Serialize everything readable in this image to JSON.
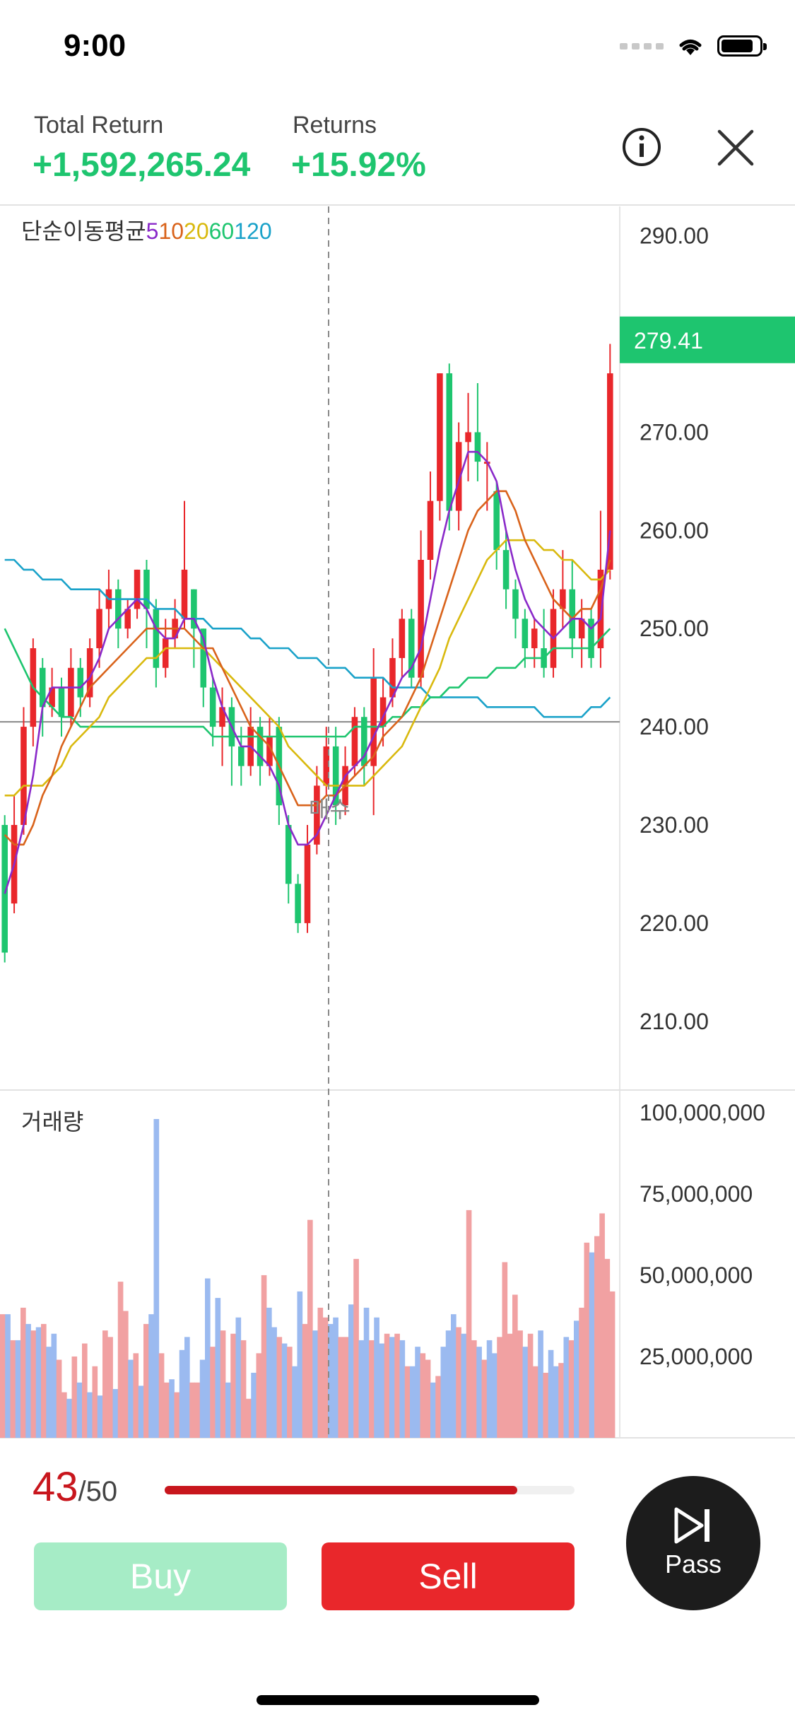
{
  "status_bar": {
    "time": "9:00"
  },
  "header": {
    "total_return_label": "Total Return",
    "total_return_value": "+1,592,265.24",
    "returns_label": "Returns",
    "returns_value": "+15.92%",
    "info_icon": "info-icon",
    "close_icon": "close-icon"
  },
  "colors": {
    "up": "#e9272b",
    "down": "#1ec56f",
    "ma5": "#8a2ac9",
    "ma10": "#d9631b",
    "ma20": "#d9b90e",
    "ma60": "#1ec56f",
    "ma120": "#1aa2c9"
  },
  "chart_data": [
    {
      "type": "candlestick",
      "title": "단순이동평균",
      "legend": [
        {
          "name": "5",
          "color": "#8a2ac9"
        },
        {
          "name": "10",
          "color": "#d9631b"
        },
        {
          "name": "20",
          "color": "#d9b90e"
        },
        {
          "name": "60",
          "color": "#1ec56f"
        },
        {
          "name": "120",
          "color": "#1aa2c9"
        }
      ],
      "y_ticks": [
        "290.00",
        "270.00",
        "260.00",
        "250.00",
        "240.00",
        "230.00",
        "220.00",
        "210.00"
      ],
      "ylim": [
        203,
        293
      ],
      "current_price": "279.41",
      "reference_line": 240.5,
      "marker_label": "매수",
      "candles": [
        [
          230,
          217,
          231,
          216
        ],
        [
          222,
          230,
          233,
          221
        ],
        [
          230,
          240,
          242,
          229
        ],
        [
          240,
          248,
          249,
          238
        ],
        [
          246,
          242,
          247,
          239
        ],
        [
          242,
          244,
          246,
          241
        ],
        [
          244,
          241,
          245,
          239
        ],
        [
          241,
          246,
          248,
          240
        ],
        [
          246,
          243,
          247,
          241
        ],
        [
          243,
          248,
          249,
          242
        ],
        [
          248,
          252,
          254,
          246
        ],
        [
          252,
          254,
          256,
          250
        ],
        [
          254,
          250,
          255,
          248
        ],
        [
          250,
          252,
          253,
          249
        ],
        [
          252,
          256,
          256,
          251
        ],
        [
          256,
          252,
          257,
          248
        ],
        [
          252,
          246,
          253,
          244
        ],
        [
          246,
          249,
          251,
          245
        ],
        [
          249,
          251,
          253,
          248
        ],
        [
          251,
          256,
          263,
          250
        ],
        [
          254,
          250,
          254,
          246
        ],
        [
          250,
          244,
          250,
          242
        ],
        [
          244,
          240,
          245,
          238
        ],
        [
          240,
          242,
          244,
          236
        ],
        [
          242,
          238,
          243,
          234
        ],
        [
          238,
          236,
          240,
          234
        ],
        [
          236,
          240,
          242,
          235
        ],
        [
          240,
          236,
          241,
          234
        ],
        [
          236,
          239,
          241,
          235
        ],
        [
          240,
          232,
          241,
          230
        ],
        [
          230,
          224,
          231,
          222
        ],
        [
          224,
          220,
          225,
          219
        ],
        [
          220,
          228,
          230,
          219
        ],
        [
          228,
          234,
          236,
          227
        ],
        [
          234,
          238,
          240,
          233
        ],
        [
          238,
          232,
          240,
          230
        ],
        [
          232,
          236,
          238,
          231
        ],
        [
          236,
          241,
          242,
          235
        ],
        [
          241,
          236,
          242,
          234
        ],
        [
          236,
          245,
          248,
          231
        ],
        [
          240,
          243,
          245,
          238
        ],
        [
          243,
          247,
          249,
          242
        ],
        [
          247,
          251,
          252,
          245
        ],
        [
          251,
          245,
          252,
          244
        ],
        [
          245,
          257,
          260,
          244
        ],
        [
          257,
          263,
          266,
          255
        ],
        [
          263,
          276,
          276,
          261
        ],
        [
          276,
          262,
          277,
          260
        ],
        [
          262,
          269,
          271,
          260
        ],
        [
          269,
          270,
          274,
          265
        ],
        [
          270,
          267,
          275,
          265
        ],
        [
          267,
          267,
          269,
          262
        ],
        [
          264,
          258,
          265,
          256
        ],
        [
          258,
          254,
          260,
          252
        ],
        [
          254,
          251,
          255,
          249
        ],
        [
          251,
          248,
          252,
          246
        ],
        [
          248,
          250,
          251,
          246
        ],
        [
          248,
          246,
          252,
          245
        ],
        [
          246,
          252,
          254,
          245
        ],
        [
          252,
          254,
          258,
          250
        ],
        [
          254,
          249,
          257,
          247
        ],
        [
          249,
          251,
          253,
          246
        ],
        [
          251,
          247,
          252,
          246
        ],
        [
          248,
          256,
          262,
          246
        ],
        [
          256,
          276,
          279,
          255
        ]
      ],
      "ma_series": {
        "ma5": [
          223,
          226,
          230,
          235,
          242,
          244,
          244,
          244,
          244,
          245,
          247,
          250,
          251,
          252,
          253,
          252,
          250,
          249,
          249,
          251,
          251,
          249,
          245,
          242,
          240,
          238,
          238,
          237,
          236,
          234,
          230,
          228,
          228,
          229,
          231,
          233,
          235,
          236,
          237,
          239,
          241,
          243,
          245,
          246,
          248,
          253,
          258,
          262,
          265,
          268,
          268,
          267,
          265,
          260,
          256,
          253,
          251,
          250,
          249,
          250,
          251,
          251,
          250,
          251,
          260
        ],
        "ma10": [
          229,
          228,
          228,
          230,
          233,
          235,
          238,
          240,
          242,
          244,
          245,
          246,
          247,
          248,
          249,
          250,
          250,
          250,
          250,
          250,
          249,
          248,
          248,
          246,
          244,
          242,
          240,
          239,
          238,
          236,
          234,
          232,
          232,
          232,
          233,
          233,
          234,
          235,
          236,
          237,
          239,
          240,
          241,
          243,
          245,
          248,
          251,
          254,
          257,
          260,
          262,
          263,
          264,
          264,
          262,
          259,
          257,
          255,
          253,
          252,
          251,
          252,
          252,
          254,
          257
        ],
        "ma20": [
          233,
          233,
          234,
          234,
          234,
          235,
          236,
          238,
          239,
          240,
          241,
          243,
          244,
          245,
          246,
          247,
          247,
          248,
          248,
          248,
          248,
          248,
          247,
          246,
          245,
          244,
          243,
          242,
          241,
          240,
          238,
          237,
          236,
          235,
          234,
          234,
          234,
          234,
          234,
          235,
          236,
          237,
          238,
          240,
          242,
          244,
          246,
          249,
          251,
          253,
          255,
          257,
          258,
          259,
          259,
          259,
          259,
          258,
          258,
          257,
          257,
          256,
          255,
          255,
          256
        ],
        "ma60": [
          250,
          248,
          246,
          244,
          243,
          242,
          241,
          241,
          240,
          240,
          240,
          240,
          240,
          240,
          240,
          240,
          240,
          240,
          240,
          240,
          240,
          240,
          239,
          239,
          239,
          239,
          239,
          239,
          239,
          239,
          239,
          239,
          239,
          239,
          239,
          239,
          239,
          240,
          240,
          240,
          240,
          241,
          241,
          242,
          242,
          243,
          243,
          244,
          244,
          245,
          245,
          245,
          246,
          246,
          246,
          247,
          247,
          247,
          248,
          248,
          248,
          248,
          248,
          249,
          250
        ],
        "ma120": [
          257,
          257,
          256,
          256,
          255,
          255,
          255,
          254,
          254,
          254,
          254,
          253,
          253,
          253,
          253,
          253,
          252,
          252,
          252,
          251,
          251,
          251,
          250,
          250,
          250,
          250,
          249,
          249,
          248,
          248,
          248,
          247,
          247,
          247,
          246,
          246,
          246,
          245,
          245,
          245,
          245,
          244,
          244,
          244,
          244,
          243,
          243,
          243,
          243,
          243,
          243,
          242,
          242,
          242,
          242,
          242,
          242,
          241,
          241,
          241,
          241,
          241,
          242,
          242,
          243
        ]
      }
    },
    {
      "type": "bar",
      "title": "거래량",
      "y_ticks": [
        "100,000,000",
        "75,000,000",
        "50,000,000",
        "25,000,000"
      ],
      "ylim": [
        0,
        103000000
      ],
      "values": [
        38,
        38,
        30,
        30,
        40,
        35,
        33,
        34,
        35,
        28,
        32,
        24,
        14,
        12,
        25,
        17,
        29,
        14,
        22,
        13,
        33,
        31,
        15,
        48,
        39,
        24,
        26,
        16,
        35,
        38,
        98,
        26,
        17,
        18,
        14,
        27,
        31,
        17,
        17,
        24,
        49,
        28,
        43,
        33,
        17,
        32,
        37,
        30,
        12,
        20,
        26,
        50,
        40,
        34,
        31,
        29,
        28,
        22,
        45,
        35,
        67,
        33,
        40,
        37,
        35,
        37,
        31,
        31,
        41,
        55,
        30,
        40,
        30,
        37,
        29,
        32,
        31,
        32,
        30,
        22,
        22,
        28,
        26,
        24,
        17,
        19,
        28,
        33,
        38,
        34,
        32,
        70,
        30,
        28,
        24,
        30,
        26,
        31,
        54,
        32,
        44,
        33,
        28,
        32,
        22,
        33,
        20,
        27,
        22,
        23,
        31,
        30,
        36,
        40,
        60,
        57,
        62,
        69,
        55,
        45
      ],
      "colors_up": [
        1,
        0,
        1,
        0,
        1,
        0,
        1,
        0,
        1,
        0,
        0,
        1,
        1,
        0,
        1,
        0,
        1,
        0,
        1,
        0,
        1,
        1,
        0,
        1,
        1,
        0,
        1,
        0,
        1,
        0,
        0,
        1,
        1,
        0,
        1,
        0,
        0,
        1,
        1,
        0,
        0,
        1,
        0,
        1,
        0,
        1,
        0,
        1,
        1,
        0,
        1,
        1,
        0,
        0,
        1,
        0,
        1,
        0,
        0,
        1,
        1,
        0,
        1,
        1,
        0,
        0,
        1,
        1,
        0,
        1,
        0,
        0,
        1,
        0,
        0,
        1,
        0,
        1,
        0,
        1,
        0,
        0,
        1,
        1,
        0,
        1,
        0,
        0,
        0,
        1,
        0,
        1,
        1,
        0,
        1,
        0,
        0,
        1,
        1,
        1,
        1,
        1,
        0,
        1,
        1,
        0,
        1,
        0,
        0,
        1,
        0,
        1,
        0,
        1,
        1,
        0,
        1,
        1,
        1,
        1
      ]
    }
  ],
  "footer": {
    "counter_current": "43",
    "counter_total": "/50",
    "progress_fraction": 0.86,
    "buy_label": "Buy",
    "sell_label": "Sell",
    "pass_label": "Pass",
    "pass_icon": "skip-next-icon"
  }
}
